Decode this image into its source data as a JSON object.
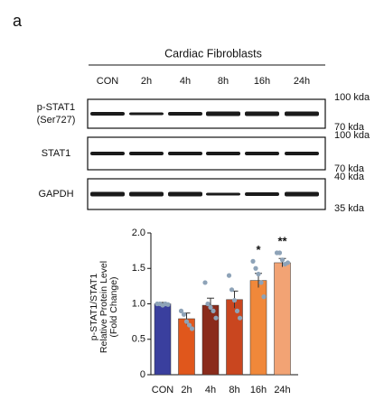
{
  "panel_label": "a",
  "blot": {
    "title": "Cardiac Fibroblasts",
    "lanes": [
      "CON",
      "2h",
      "4h",
      "8h",
      "16h",
      "24h"
    ],
    "rows": [
      {
        "label": [
          "p-STAT1",
          "(Ser727)"
        ],
        "markers": [
          "100 kda",
          "70 kda"
        ]
      },
      {
        "label": [
          "STAT1"
        ],
        "markers": [
          "100 kda",
          "70 kda"
        ]
      },
      {
        "label": [
          "GAPDH"
        ],
        "markers": [
          "40 kda",
          "35 kda"
        ]
      }
    ]
  },
  "chart_data": {
    "type": "bar",
    "ylabel": [
      "p-STAT1/STAT1",
      "Relative Protein Level",
      "(Fold Change)"
    ],
    "categories": [
      "CON",
      "2h",
      "4h",
      "8h",
      "16h",
      "24h"
    ],
    "values": [
      1.0,
      0.79,
      0.98,
      1.06,
      1.33,
      1.58
    ],
    "errors": [
      0.02,
      0.08,
      0.1,
      0.12,
      0.1,
      0.06
    ],
    "colors": [
      "#3a3f9e",
      "#e0571c",
      "#8a2b1b",
      "#c9461f",
      "#f0883a",
      "#f2a374"
    ],
    "point_color": "#8ea3b8",
    "points": [
      [
        1.0,
        1.0,
        0.98,
        1.0,
        0.99
      ],
      [
        0.9,
        0.85,
        0.75,
        0.7,
        0.65
      ],
      [
        1.3,
        1.0,
        0.95,
        0.9,
        0.8
      ],
      [
        1.4,
        1.2,
        1.05,
        0.9,
        0.8
      ],
      [
        1.6,
        1.5,
        1.42,
        1.3,
        1.1
      ],
      [
        1.72,
        1.72,
        1.62,
        1.56,
        1.58
      ]
    ],
    "annotations": [
      {
        "text": "*",
        "x": "16h"
      },
      {
        "text": "**",
        "x": "24h"
      }
    ],
    "ylim": [
      0,
      2
    ],
    "yticks": [
      0,
      {
        "value": 0.5,
        "label": "0.5"
      },
      {
        "value": 1,
        "label": "1.0"
      },
      {
        "value": 1.5,
        "label": "1.5"
      },
      {
        "value": 2,
        "label": "2.0"
      }
    ]
  }
}
